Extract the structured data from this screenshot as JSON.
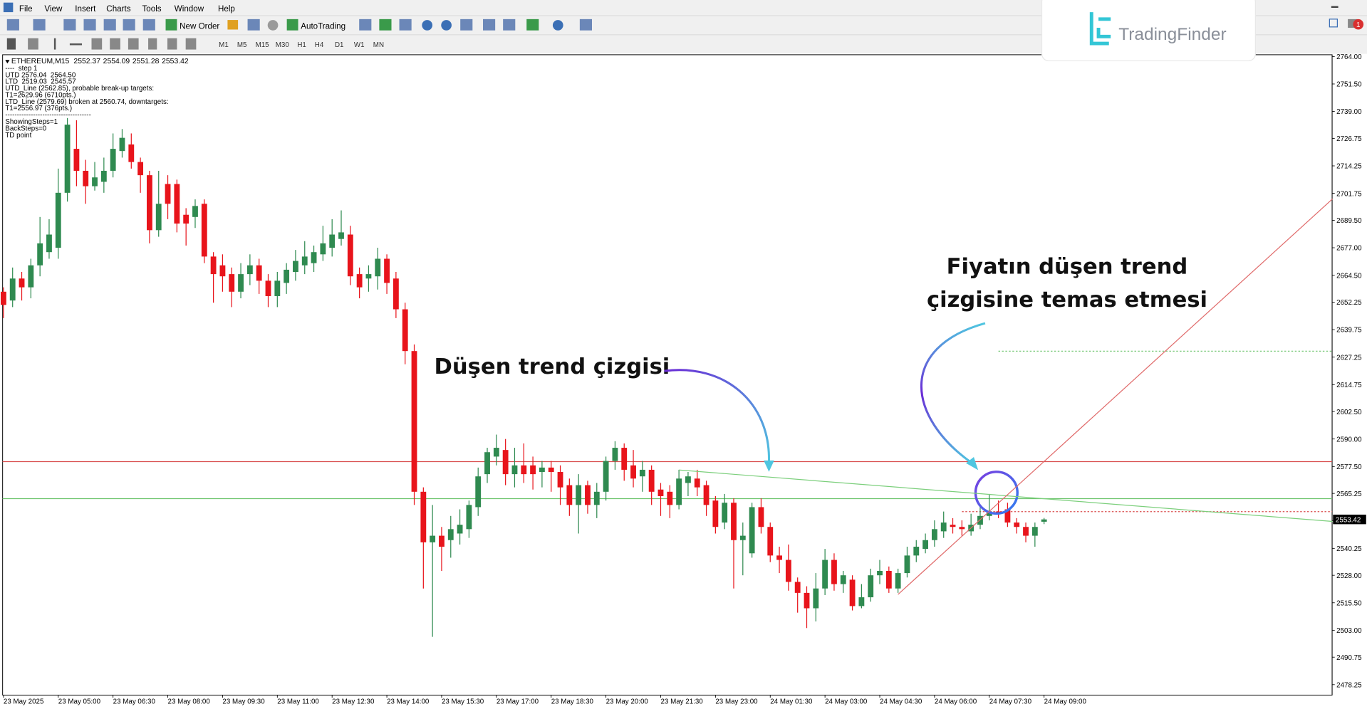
{
  "menu": [
    "File",
    "View",
    "Insert",
    "Charts",
    "Tools",
    "Window",
    "Help"
  ],
  "toolbar": [
    "New Order",
    "AutoTrading"
  ],
  "timeframes": [
    "M1",
    "M5",
    "M15",
    "M30",
    "H1",
    "H4",
    "D1",
    "W1",
    "MN"
  ],
  "logo": "TradingFinder",
  "notifications": 1,
  "chart_data": {
    "type": "candlestick",
    "symbol": "ETHEREUM,M15",
    "info_lines": [
      "----  step 1",
      "UTD 2576.04  2564.50",
      "LTD  2519.03  2545.57",
      "UTD_Line (2562.85), probable break-up targets:",
      "T1=2629.96 (6710pts.)",
      "LTD_Line (2579.69) broken at 2560.74, downtargets:",
      "T1=2556.97 (376pts.)",
      "-------------------------------------",
      "ShowingSteps=1",
      "BackSteps=0",
      "TD point"
    ],
    "categories": [
      "23 May 2025",
      null,
      null,
      null,
      null,
      null,
      "23 May 05:00",
      null,
      null,
      null,
      null,
      null,
      "23 May 06:30",
      null,
      null,
      null,
      null,
      null,
      "23 May 08:00",
      null,
      null,
      null,
      null,
      null,
      "23 May 09:30",
      null,
      null,
      null,
      null,
      null,
      "23 May 11:00",
      null,
      null,
      null,
      null,
      null,
      "23 May 12:30",
      null,
      null,
      null,
      null,
      null,
      "23 May 14:00",
      null,
      null,
      null,
      null,
      null,
      "23 May 15:30",
      null,
      null,
      null,
      null,
      null,
      "23 May 17:00",
      null,
      null,
      null,
      null,
      null,
      "23 May 18:30",
      null,
      null,
      null,
      null,
      null,
      "23 May 20:00",
      null,
      null,
      null,
      null,
      null,
      "23 May 21:30",
      null,
      null,
      null,
      null,
      null,
      "23 May 23:00",
      null,
      null,
      null,
      null,
      null,
      "24 May 01:30",
      null,
      null,
      null,
      null,
      null,
      "24 May 03:00",
      null,
      null,
      null,
      null,
      null,
      "24 May 04:30",
      null,
      null,
      null,
      null,
      null,
      "24 May 06:00",
      null,
      null,
      null,
      null,
      null,
      "24 May 07:30",
      null,
      null,
      null,
      null,
      null,
      "24 May 09:00"
    ],
    "open": [
      2657,
      2653,
      2663,
      2659,
      2669,
      2675,
      2677,
      2702,
      2722,
      2712,
      2705,
      2707,
      2712,
      2721,
      2724,
      2716,
      2710,
      2685,
      2706,
      2706,
      2692,
      2691,
      2697,
      2673,
      2669,
      2665,
      2657,
      2665,
      2669,
      2662,
      2655,
      2661,
      2666,
      2669,
      2670,
      2674,
      2677,
      2681,
      2683,
      2665,
      2663,
      2664,
      2672,
      2663,
      2649,
      2630,
      2566,
      2543,
      2546,
      2544,
      2547,
      2549,
      2559,
      2574,
      2582,
      2585,
      2574,
      2578,
      2578,
      2575,
      2577,
      2575,
      2569,
      2560,
      2569,
      2560,
      2566,
      2580,
      2586,
      2578,
      2573,
      2576,
      2567,
      2566,
      2560,
      2570,
      2572,
      2569,
      2562,
      2552,
      2561,
      2544,
      2538,
      2559,
      2550,
      2537,
      2535,
      2525,
      2520,
      2513,
      2522,
      2535,
      2524,
      2526,
      2514,
      2518,
      2528,
      2530,
      2522,
      2529,
      2537,
      2540,
      2544,
      2548,
      2551,
      2550,
      2548,
      2551,
      2555,
      2557,
      2558,
      2552,
      2550,
      2546,
      2552.37
    ],
    "high": [
      2659,
      2668,
      2666,
      2672,
      2691,
      2690,
      2713,
      2736,
      2735,
      2717,
      2716,
      2718,
      2729,
      2731,
      2729,
      2718,
      2712,
      2712,
      2710,
      2708,
      2695,
      2699,
      2699,
      2675,
      2674,
      2668,
      2670,
      2674,
      2672,
      2665,
      2666,
      2670,
      2676,
      2680,
      2678,
      2687,
      2690,
      2694,
      2687,
      2668,
      2669,
      2677,
      2674,
      2666,
      2652,
      2633,
      2568,
      2560,
      2550,
      2555,
      2558,
      2562,
      2577,
      2586,
      2592,
      2590,
      2586,
      2588,
      2582,
      2580,
      2580,
      2578,
      2572,
      2574,
      2571,
      2570,
      2582,
      2589,
      2588,
      2585,
      2580,
      2578,
      2570,
      2569,
      2576,
      2575,
      2576,
      2571,
      2564,
      2565,
      2563,
      2552,
      2561,
      2563,
      2552,
      2541,
      2542,
      2527,
      2523,
      2529,
      2540,
      2538,
      2530,
      2528,
      2524,
      2531,
      2535,
      2532,
      2531,
      2541,
      2544,
      2547,
      2553,
      2557,
      2554,
      2553,
      2556,
      2559,
      2565,
      2562,
      2561,
      2554,
      2552,
      2552,
      2554.09
    ],
    "low": [
      2645,
      2650,
      2653,
      2654,
      2664,
      2672,
      2672,
      2698,
      2705,
      2697,
      2703,
      2702,
      2709,
      2718,
      2713,
      2702,
      2679,
      2682,
      2690,
      2684,
      2678,
      2686,
      2670,
      2652,
      2657,
      2650,
      2654,
      2660,
      2656,
      2650,
      2650,
      2656,
      2662,
      2665,
      2666,
      2671,
      2673,
      2678,
      2660,
      2654,
      2657,
      2658,
      2656,
      2645,
      2624,
      2560,
      2522,
      2500,
      2530,
      2536,
      2542,
      2545,
      2555,
      2570,
      2578,
      2569,
      2568,
      2570,
      2567,
      2568,
      2566,
      2560,
      2555,
      2547,
      2556,
      2554,
      2562,
      2576,
      2571,
      2568,
      2566,
      2560,
      2555,
      2554,
      2558,
      2564,
      2564,
      2555,
      2547,
      2549,
      2522,
      2528,
      2536,
      2547,
      2534,
      2529,
      2521,
      2511,
      2504,
      2507,
      2519,
      2521,
      2520,
      2512,
      2513,
      2516,
      2524,
      2520,
      2520,
      2527,
      2534,
      2538,
      2541,
      2545,
      2547,
      2546,
      2546,
      2549,
      2553,
      2554,
      2550,
      2547,
      2543,
      2541,
      2551.28
    ],
    "close": [
      2651,
      2663,
      2659,
      2669,
      2679,
      2683,
      2702,
      2733,
      2712,
      2705,
      2709,
      2712,
      2722,
      2727,
      2716,
      2710,
      2685,
      2697,
      2697,
      2688,
      2688,
      2696,
      2673,
      2665,
      2664,
      2657,
      2665,
      2669,
      2662,
      2655,
      2662,
      2667,
      2671,
      2673,
      2675,
      2679,
      2683,
      2684,
      2664,
      2659,
      2665,
      2672,
      2661,
      2649,
      2630,
      2566,
      2543,
      2546,
      2541,
      2549,
      2551,
      2560,
      2573,
      2584,
      2586,
      2574,
      2578,
      2574,
      2574,
      2577,
      2575,
      2568,
      2560,
      2569,
      2560,
      2566,
      2580,
      2586,
      2576,
      2572,
      2576,
      2566,
      2564,
      2560,
      2572,
      2573,
      2568,
      2560,
      2550,
      2561,
      2544,
      2546,
      2559,
      2550,
      2537,
      2535,
      2525,
      2520,
      2513,
      2522,
      2535,
      2524,
      2528,
      2514,
      2518,
      2528,
      2530,
      2522,
      2529,
      2537,
      2541,
      2544,
      2549,
      2552,
      2550,
      2549,
      2551,
      2555,
      2557,
      2556,
      2552,
      2550,
      2546,
      2550,
      2553.42
    ],
    "up_color": "#2f8a50",
    "down_color": "#e8141b",
    "ylim": [
      2473.5,
      2764.8
    ],
    "yticks": [
      {
        "value": 2764,
        "label": "2764.00"
      },
      {
        "value": 2751.5,
        "label": "2751.50"
      },
      {
        "value": 2739,
        "label": "2739.00"
      },
      2726.75,
      2714.25,
      2701.75,
      {
        "value": 2689.5,
        "label": "2689.50"
      },
      {
        "value": 2677,
        "label": "2677.00"
      },
      {
        "value": 2664.5,
        "label": "2664.50"
      },
      2652.25,
      2639.75,
      2627.25,
      2614.75,
      {
        "value": 2602.5,
        "label": "2602.50"
      },
      {
        "value": 2590,
        "label": "2590.00"
      },
      {
        "value": 2577.5,
        "label": "2577.50"
      },
      2565.25,
      2552.75,
      2540.25,
      {
        "value": 2528,
        "label": "2528.00"
      },
      {
        "value": 2515.5,
        "label": "2515.50"
      },
      {
        "value": 2503,
        "label": "2503.00"
      },
      2490.75,
      2478.25
    ],
    "last_price": 2553.42,
    "hlines": [
      {
        "value": 2579.69,
        "color": "#d94c4c"
      },
      {
        "value": 2562.85,
        "color": "#6cc46c"
      },
      {
        "value": 2556.97,
        "color": "#d94c4c",
        "dash": true,
        "from": 105
      },
      {
        "value": 2629.96,
        "color": "#6cc46c",
        "dash": true,
        "from": 109
      }
    ],
    "trendlines": [
      {
        "points": [
          [
            74,
            2575.9
          ],
          [
            145.6,
            2552.5
          ]
        ],
        "color": "#7ccf7c"
      },
      {
        "points": [
          [
            98,
            2519.3
          ],
          [
            145.6,
            2699.2
          ]
        ],
        "color": "#e06a6a"
      }
    ],
    "annotations": [
      "Düşen trend çizgisi",
      "Fiyatın düşen trend",
      "çizgisine temas etmesi"
    ]
  }
}
